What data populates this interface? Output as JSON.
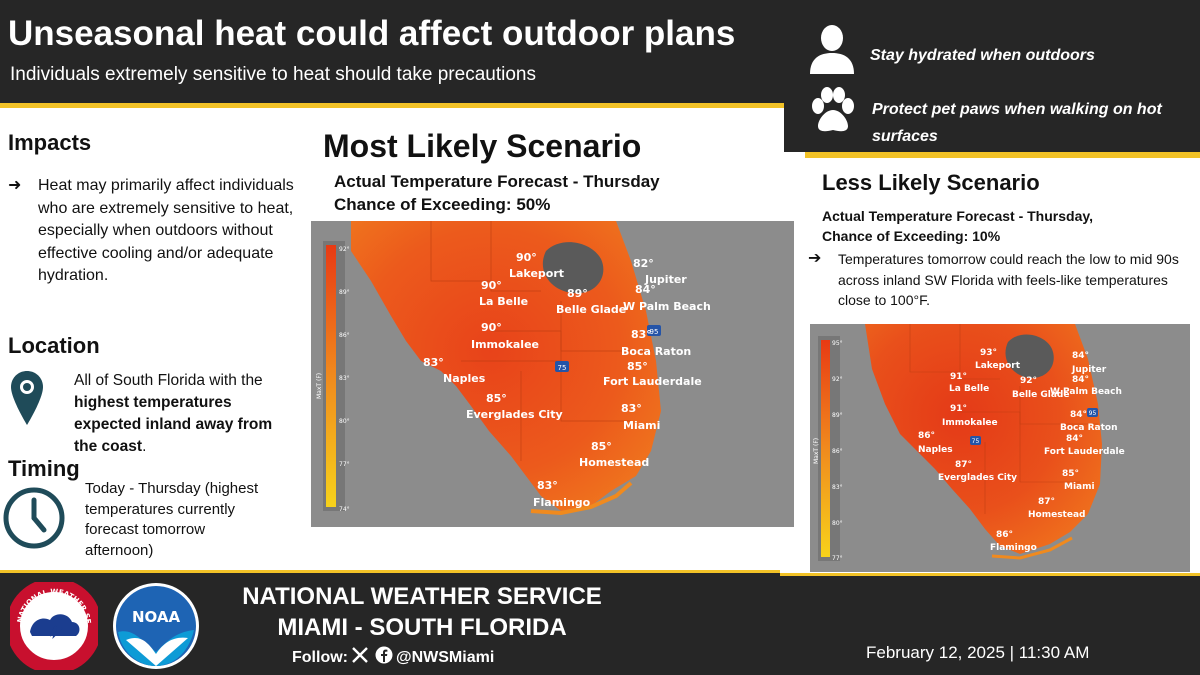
{
  "header": {
    "title": "Unseasonal heat could affect outdoor plans",
    "subtitle": "Individuals extremely sensitive to heat should take precautions"
  },
  "tips": [
    {
      "icon": "person-icon",
      "text": "Stay hydrated when outdoors"
    },
    {
      "icon": "paw-icon",
      "text": "Protect pet paws when walking on hot surfaces"
    }
  ],
  "impacts": {
    "heading": "Impacts",
    "text": "Heat may primarily affect individuals who are extremely sensitive to heat, especially when outdoors without effective cooling and/or adequate hydration."
  },
  "location": {
    "heading": "Location",
    "text_pre": "All of South Florida with the ",
    "text_bold": "highest temperatures expected inland away from the coast",
    "text_post": "."
  },
  "timing": {
    "heading": "Timing",
    "text": "Today - Thursday (highest temperatures currently forecast tomorrow afternoon)"
  },
  "most_likely": {
    "title": "Most Likely Scenario",
    "line1": "Actual Temperature Forecast - Thursday",
    "line2": "Chance of Exceeding: 50%",
    "scale_label": "MaxT (F)",
    "scale_ticks": [
      "92°",
      "89°",
      "86°",
      "83°",
      "80°",
      "77°",
      "74°"
    ],
    "cities": [
      {
        "name": "Lakeport",
        "temp": "90°"
      },
      {
        "name": "La Belle",
        "temp": "90°"
      },
      {
        "name": "Belle Glade",
        "temp": "89°"
      },
      {
        "name": "Jupiter",
        "temp": "82°"
      },
      {
        "name": "W Palm Beach",
        "temp": "84°"
      },
      {
        "name": "Immokalee",
        "temp": "90°"
      },
      {
        "name": "Boca Raton",
        "temp": "83°"
      },
      {
        "name": "Fort Lauderdale",
        "temp": "85°"
      },
      {
        "name": "Naples",
        "temp": "83°"
      },
      {
        "name": "Everglades City",
        "temp": "85°"
      },
      {
        "name": "Miami",
        "temp": "83°"
      },
      {
        "name": "Homestead",
        "temp": "85°"
      },
      {
        "name": "Flamingo",
        "temp": "83°"
      }
    ],
    "highways": [
      "75",
      "95"
    ]
  },
  "less_likely": {
    "title": "Less Likely Scenario",
    "line1": "Actual Temperature Forecast - Thursday,",
    "line2": "Chance of Exceeding: 10%",
    "text": "Temperatures tomorrow could reach the low to mid 90s across inland SW Florida with feels-like temperatures close to 100°F.",
    "scale_label": "MaxT (F)",
    "scale_ticks": [
      "95°",
      "92°",
      "89°",
      "86°",
      "83°",
      "80°",
      "77°"
    ],
    "cities": [
      {
        "name": "Lakeport",
        "temp": "93°"
      },
      {
        "name": "La Belle",
        "temp": "91°"
      },
      {
        "name": "Belle Glade",
        "temp": "92°"
      },
      {
        "name": "Jupiter",
        "temp": "84°"
      },
      {
        "name": "W Palm Beach",
        "temp": "84°"
      },
      {
        "name": "Immokalee",
        "temp": "91°"
      },
      {
        "name": "Boca Raton",
        "temp": "84°"
      },
      {
        "name": "Fort Lauderdale",
        "temp": "84°"
      },
      {
        "name": "Naples",
        "temp": "86°"
      },
      {
        "name": "Everglades City",
        "temp": "87°"
      },
      {
        "name": "Miami",
        "temp": "85°"
      },
      {
        "name": "Homestead",
        "temp": "87°"
      },
      {
        "name": "Flamingo",
        "temp": "86°"
      }
    ],
    "highways": [
      "75",
      "95"
    ]
  },
  "footer": {
    "org_line1": "NATIONAL WEATHER SERVICE",
    "org_line2": "MIAMI - SOUTH FLORIDA",
    "follow_label": "Follow:",
    "handle": "@NWSMiami",
    "date": "February  12,  2025 | 11:30 AM",
    "nws_seal_text": "NATIONAL WEATHER SERVICE",
    "noaa_logo_text": "NOAA"
  },
  "colors": {
    "dark": "#262626",
    "accent_yellow": "#f2c227",
    "icon_teal": "#1f4b59",
    "heat_red": "#e8431a",
    "heat_orange": "#f07a1e"
  }
}
